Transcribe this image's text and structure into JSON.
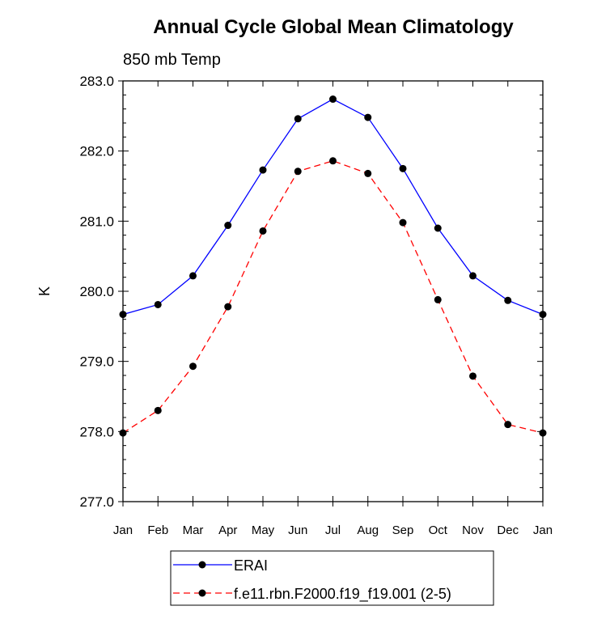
{
  "chart_data": {
    "type": "line",
    "title": "Annual Cycle Global Mean Climatology",
    "subtitle": "850 mb Temp",
    "xlabel": "",
    "ylabel": "K",
    "categories": [
      "Jan",
      "Feb",
      "Mar",
      "Apr",
      "May",
      "Jun",
      "Jul",
      "Aug",
      "Sep",
      "Oct",
      "Nov",
      "Dec",
      "Jan"
    ],
    "ylim": [
      277.0,
      283.0
    ],
    "yticks": [
      "277.0",
      "278.0",
      "279.0",
      "280.0",
      "281.0",
      "282.0",
      "283.0"
    ],
    "grid": false,
    "legend_position": "bottom",
    "series": [
      {
        "name": "ERAI",
        "color": "#0000ff",
        "line_style": "solid",
        "marker": "filled-circle",
        "values": [
          279.67,
          279.81,
          280.22,
          280.94,
          281.73,
          282.46,
          282.74,
          282.48,
          281.75,
          280.9,
          280.22,
          279.87,
          279.67
        ]
      },
      {
        "name": "f.e11.rbn.F2000.f19_f19.001 (2-5)",
        "color": "#ff0000",
        "line_style": "dashed",
        "marker": "filled-circle",
        "values": [
          277.98,
          278.3,
          278.93,
          279.78,
          280.86,
          281.71,
          281.86,
          281.68,
          280.98,
          279.88,
          278.79,
          278.1,
          277.98
        ]
      }
    ]
  }
}
